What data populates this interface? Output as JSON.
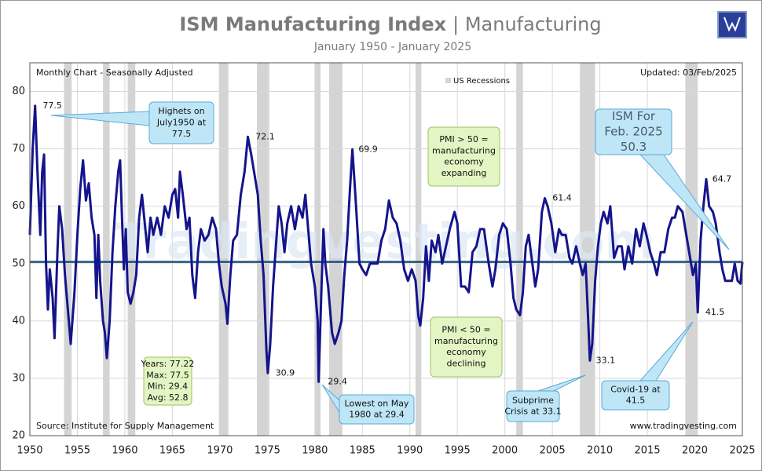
{
  "chart_data": {
    "type": "line",
    "title": [
      "ISM Manufacturing Index",
      "| Manufacturing"
    ],
    "subtitle": "January 1950 - January 2025",
    "chart_note": "Monthly Chart  - Seasonally Adjusted",
    "updated": "Updated: 03/Feb/2025",
    "source": "Source: Institute for Supply Management",
    "credit": "www.tradingvesting.com",
    "watermark": "Tradingvesting.com",
    "recession_label": "US Recessions",
    "recession_color": "#d4d4d4",
    "recessions": [
      [
        1953.6,
        1954.4
      ],
      [
        1957.7,
        1958.4
      ],
      [
        1960.3,
        1961.1
      ],
      [
        1969.9,
        1970.9
      ],
      [
        1973.9,
        1975.2
      ],
      [
        1980.0,
        1980.6
      ],
      [
        1981.5,
        1982.9
      ],
      [
        1990.6,
        1991.2
      ],
      [
        2001.2,
        2001.9
      ],
      [
        2007.9,
        2009.5
      ],
      [
        2019.0,
        2020.3
      ]
    ],
    "color": "#14148c",
    "reference_line": 50.3,
    "reference_color": "#1f4e79",
    "xlim": [
      1950,
      2025
    ],
    "xticks": [
      1950,
      1955,
      1960,
      1965,
      1970,
      1975,
      1980,
      1985,
      1990,
      1995,
      2000,
      2005,
      2010,
      2015,
      2020,
      2025
    ],
    "ylim": [
      20,
      85
    ],
    "yticks": [
      20,
      30,
      40,
      50,
      60,
      70,
      80
    ],
    "grid": true,
    "x": [
      1950.0,
      1950.3,
      1950.55,
      1950.8,
      1951.1,
      1951.3,
      1951.5,
      1951.7,
      1951.9,
      1952.1,
      1952.4,
      1952.6,
      1952.9,
      1953.1,
      1953.4,
      1953.7,
      1954.0,
      1954.3,
      1954.7,
      1955.0,
      1955.3,
      1955.6,
      1955.9,
      1956.2,
      1956.5,
      1956.8,
      1957.0,
      1957.2,
      1957.4,
      1957.7,
      1957.9,
      1958.1,
      1958.4,
      1958.7,
      1959.0,
      1959.3,
      1959.5,
      1959.7,
      1959.9,
      1960.1,
      1960.3,
      1960.6,
      1960.9,
      1961.2,
      1961.5,
      1961.8,
      1962.1,
      1962.4,
      1962.7,
      1963.0,
      1963.4,
      1963.8,
      1964.2,
      1964.6,
      1965.0,
      1965.3,
      1965.6,
      1965.8,
      1966.1,
      1966.5,
      1966.8,
      1967.1,
      1967.4,
      1967.7,
      1968.0,
      1968.4,
      1968.8,
      1969.2,
      1969.6,
      1969.9,
      1970.2,
      1970.6,
      1970.8,
      1971.1,
      1971.4,
      1971.8,
      1972.2,
      1972.6,
      1972.95,
      1973.3,
      1973.6,
      1974.0,
      1974.3,
      1974.6,
      1974.9,
      1975.05,
      1975.3,
      1975.6,
      1975.9,
      1976.2,
      1976.5,
      1976.8,
      1977.1,
      1977.5,
      1977.9,
      1978.3,
      1978.7,
      1979.0,
      1979.3,
      1979.6,
      1980.0,
      1980.3,
      1980.4,
      1980.7,
      1980.9,
      1981.1,
      1981.4,
      1981.8,
      1982.1,
      1982.5,
      1982.8,
      1983.1,
      1983.4,
      1983.7,
      1983.95,
      1984.3,
      1984.7,
      1985.0,
      1985.4,
      1985.8,
      1986.2,
      1986.6,
      1987.0,
      1987.4,
      1987.8,
      1988.2,
      1988.6,
      1989.0,
      1989.4,
      1989.8,
      1990.2,
      1990.6,
      1990.9,
      1991.1,
      1991.4,
      1991.7,
      1992.0,
      1992.3,
      1992.7,
      1993.0,
      1993.4,
      1993.8,
      1994.2,
      1994.7,
      1995.0,
      1995.4,
      1995.8,
      1996.2,
      1996.6,
      1997.0,
      1997.4,
      1997.8,
      1998.3,
      1998.7,
      1999.0,
      1999.4,
      1999.8,
      2000.2,
      2000.6,
      2000.9,
      2001.2,
      2001.6,
      2001.9,
      2002.2,
      2002.5,
      2002.9,
      2003.2,
      2003.5,
      2003.9,
      2004.2,
      2004.5,
      2004.9,
      2005.3,
      2005.7,
      2006.0,
      2006.4,
      2006.8,
      2007.1,
      2007.5,
      2007.9,
      2008.2,
      2008.5,
      2008.8,
      2008.95,
      2009.2,
      2009.5,
      2009.8,
      2010.1,
      2010.4,
      2010.8,
      2011.1,
      2011.5,
      2011.9,
      2012.3,
      2012.6,
      2013.0,
      2013.4,
      2013.8,
      2014.2,
      2014.6,
      2014.9,
      2015.3,
      2015.7,
      2016.0,
      2016.4,
      2016.8,
      2017.2,
      2017.6,
      2017.9,
      2018.2,
      2018.7,
      2019.0,
      2019.4,
      2019.8,
      2020.1,
      2020.3,
      2020.6,
      2020.9,
      2021.2,
      2021.5,
      2021.9,
      2022.2,
      2022.6,
      2022.9,
      2023.2,
      2023.6,
      2023.9,
      2024.2,
      2024.5,
      2024.8,
      2025.0
    ],
    "values": [
      55,
      70,
      77.5,
      66,
      55,
      66,
      69,
      50,
      42,
      49,
      44,
      37,
      52,
      60,
      56,
      48,
      42,
      36,
      45,
      55,
      63,
      68,
      61,
      64,
      58,
      55,
      44,
      55,
      47,
      40,
      38,
      33.5,
      40,
      52,
      60,
      66,
      68,
      58,
      49,
      56,
      45,
      43,
      45,
      48,
      58,
      62,
      57,
      52,
      58,
      55,
      58,
      55,
      60,
      58,
      62,
      63,
      58,
      66,
      62,
      56,
      58,
      48,
      44,
      52,
      56,
      54,
      55,
      58,
      56,
      50,
      46,
      43,
      39.5,
      48,
      54,
      55,
      62,
      66,
      72.1,
      69,
      66,
      62,
      54,
      48,
      35,
      30.9,
      36,
      46,
      53,
      60,
      57,
      52,
      57,
      60,
      56,
      60,
      58,
      62,
      56,
      50,
      46,
      40,
      29.4,
      46,
      56,
      50,
      46,
      38,
      36,
      38,
      40,
      48,
      54,
      63,
      69.9,
      61,
      50,
      49,
      48,
      50,
      50,
      50,
      54,
      56,
      61,
      58,
      57,
      54,
      49,
      47,
      49,
      47,
      40.8,
      39.2,
      44,
      53,
      47,
      54,
      52,
      55,
      50,
      53,
      56,
      59,
      57,
      46,
      46,
      45,
      52,
      53,
      56,
      56,
      50,
      46,
      49,
      55,
      57,
      56,
      50,
      44,
      42,
      41,
      45,
      53,
      55,
      50,
      46,
      49,
      59,
      61.4,
      60,
      57,
      52,
      56,
      55,
      55,
      51,
      50,
      53,
      50,
      48,
      50,
      39,
      33.1,
      36,
      47,
      53,
      57,
      59,
      57,
      60,
      51,
      53,
      53,
      49,
      53,
      50,
      56,
      53,
      57,
      55,
      52,
      50,
      48,
      52,
      52,
      56,
      58,
      58,
      60,
      59,
      56,
      52,
      48,
      50,
      41.5,
      54,
      60,
      64.7,
      60,
      59,
      57,
      52,
      49,
      47,
      47,
      47,
      50,
      47,
      46.5,
      50.3
    ],
    "point_labels": [
      {
        "x": 1950.55,
        "value": 77.5
      },
      {
        "x": 1972.95,
        "value": 72.1
      },
      {
        "x": 1975.05,
        "value": 30.9
      },
      {
        "x": 1980.4,
        "value": 29.4
      },
      {
        "x": 1983.95,
        "value": 69.9
      },
      {
        "x": 2004.2,
        "value": 61.4
      },
      {
        "x": 2008.95,
        "value": 33.1
      },
      {
        "x": 2021.2,
        "value": 64.7
      },
      {
        "x": 2020.3,
        "value": 41.5
      }
    ],
    "callouts": [
      {
        "lines": [
          "Highets on",
          "July1950 at",
          "77.5"
        ],
        "style": "blue"
      },
      {
        "lines": [
          "ISM For",
          "Feb. 2025",
          "50.3"
        ],
        "style": "blue"
      },
      {
        "lines": [
          "PMI > 50 =",
          "manufacturing",
          "economy",
          "expanding"
        ],
        "style": "green"
      },
      {
        "lines": [
          "PMI < 50 =",
          "manufacturing",
          "economy",
          "declining"
        ],
        "style": "green"
      },
      {
        "lines": [
          "Years: 77.22",
          "Max: 77.5",
          "Min: 29.4",
          "Avg: 52.8"
        ],
        "style": "green"
      },
      {
        "lines": [
          "Lowest on May",
          "1980 at 29.4"
        ],
        "style": "blue"
      },
      {
        "lines": [
          "Subprime",
          "Crisis at 33.1"
        ],
        "style": "blue"
      },
      {
        "lines": [
          "Covid-19 at",
          "41.5"
        ],
        "style": "blue"
      }
    ]
  }
}
